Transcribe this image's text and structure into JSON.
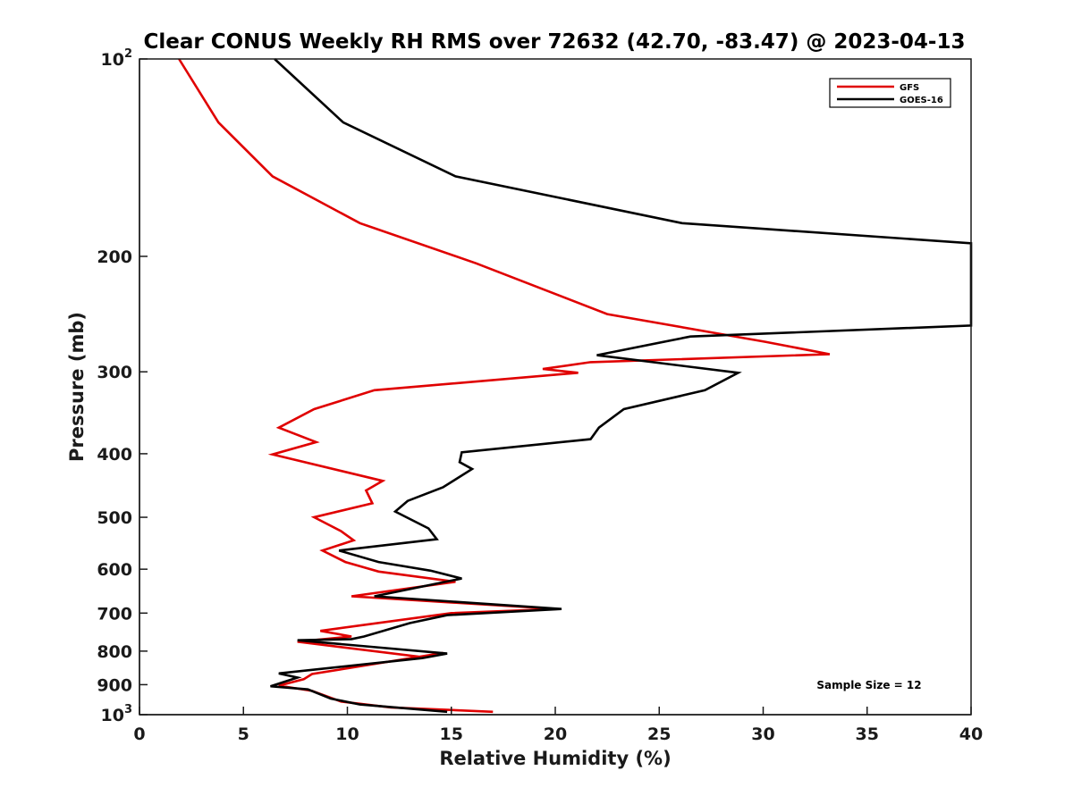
{
  "chart_data": {
    "type": "line",
    "title": "Clear CONUS Weekly RH RMS over 72632 (42.70, -83.47) @ 2023-04-13",
    "xlabel": "Relative Humidity (%)",
    "ylabel": "Pressure (mb)",
    "xlim": [
      0,
      40
    ],
    "ylim": [
      100,
      1000
    ],
    "y_scale": "log",
    "y_reversed": true,
    "x_ticks": [
      "0",
      "5",
      "10",
      "15",
      "20",
      "25",
      "30",
      "35",
      "40"
    ],
    "y_ticks": [
      {
        "value": 100,
        "base": "10",
        "exp": "2"
      },
      {
        "value": 200,
        "label": "200"
      },
      {
        "value": 300,
        "label": "300"
      },
      {
        "value": 400,
        "label": "400"
      },
      {
        "value": 500,
        "label": "500"
      },
      {
        "value": 600,
        "label": "600"
      },
      {
        "value": 700,
        "label": "700"
      },
      {
        "value": 800,
        "label": "800"
      },
      {
        "value": 900,
        "label": "900"
      },
      {
        "value": 1000,
        "base": "10",
        "exp": "3"
      }
    ],
    "legend_position": "top-right",
    "grid": false,
    "annotation": "Sample Size = 12",
    "series": [
      {
        "name": "GFS",
        "color": "#e00000",
        "points": [
          [
            1.9,
            100
          ],
          [
            3.8,
            125
          ],
          [
            6.4,
            151
          ],
          [
            10.6,
            178
          ],
          [
            16.2,
            205
          ],
          [
            22.5,
            245
          ],
          [
            30.1,
            270
          ],
          [
            33.2,
            282
          ],
          [
            21.7,
            290
          ],
          [
            19.4,
            297
          ],
          [
            21.1,
            301
          ],
          [
            11.3,
            320
          ],
          [
            8.4,
            342
          ],
          [
            6.7,
            365
          ],
          [
            8.5,
            384
          ],
          [
            6.4,
            401
          ],
          [
            11.7,
            440
          ],
          [
            10.9,
            455
          ],
          [
            11.2,
            476
          ],
          [
            8.4,
            500
          ],
          [
            9.7,
            525
          ],
          [
            10.3,
            542
          ],
          [
            8.8,
            562
          ],
          [
            9.9,
            585
          ],
          [
            11.5,
            605
          ],
          [
            15.2,
            627
          ],
          [
            10.2,
            660
          ],
          [
            20.1,
            690
          ],
          [
            15.0,
            700
          ],
          [
            8.7,
            745
          ],
          [
            10.2,
            760
          ],
          [
            7.6,
            774
          ],
          [
            13.6,
            817
          ],
          [
            14.6,
            805
          ],
          [
            8.3,
            867
          ],
          [
            7.9,
            883
          ],
          [
            6.7,
            903
          ],
          [
            8.3,
            920
          ],
          [
            9.7,
            955
          ],
          [
            12.1,
            975
          ],
          [
            17.0,
            990
          ]
        ]
      },
      {
        "name": "GOES-16",
        "color": "#000000",
        "points": [
          [
            6.5,
            100
          ],
          [
            9.8,
            125
          ],
          [
            15.2,
            151
          ],
          [
            26.1,
            178
          ],
          [
            40.0,
            191
          ],
          [
            40.0,
            255
          ],
          [
            26.5,
            265
          ],
          [
            22.0,
            283
          ],
          [
            28.8,
            301
          ],
          [
            27.2,
            320
          ],
          [
            23.3,
            342
          ],
          [
            22.1,
            365
          ],
          [
            21.7,
            380
          ],
          [
            15.5,
            398
          ],
          [
            15.4,
            412
          ],
          [
            16.0,
            422
          ],
          [
            14.6,
            450
          ],
          [
            12.9,
            472
          ],
          [
            12.3,
            490
          ],
          [
            13.9,
            520
          ],
          [
            14.3,
            540
          ],
          [
            9.6,
            562
          ],
          [
            11.5,
            585
          ],
          [
            14.0,
            603
          ],
          [
            15.5,
            620
          ],
          [
            11.3,
            660
          ],
          [
            20.3,
            690
          ],
          [
            14.8,
            705
          ],
          [
            13.0,
            725
          ],
          [
            10.8,
            760
          ],
          [
            10.2,
            767
          ],
          [
            7.6,
            770
          ],
          [
            14.8,
            807
          ],
          [
            13.6,
            820
          ],
          [
            6.7,
            865
          ],
          [
            7.6,
            878
          ],
          [
            6.3,
            905
          ],
          [
            8.1,
            915
          ],
          [
            9.2,
            945
          ],
          [
            10.6,
            965
          ],
          [
            14.8,
            990
          ]
        ]
      }
    ]
  }
}
